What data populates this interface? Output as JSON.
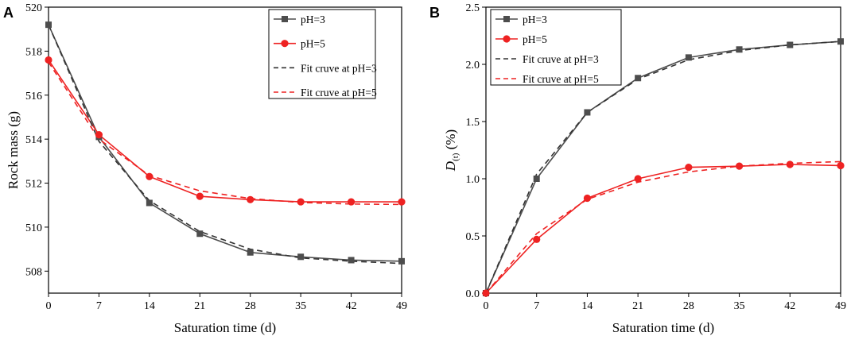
{
  "chart_data": [
    {
      "panel_label": "A",
      "type": "line",
      "xlabel": "Saturation time (d)",
      "ylabel": "Rock mass (g)",
      "xlim": [
        0,
        49
      ],
      "ylim": [
        507,
        520
      ],
      "xticks": [
        0,
        7,
        14,
        21,
        28,
        35,
        42,
        49
      ],
      "yticks": [
        508,
        510,
        512,
        514,
        516,
        518,
        520
      ],
      "x": [
        0,
        7,
        14,
        21,
        28,
        35,
        42,
        49
      ],
      "series": [
        {
          "name": "pH=3",
          "kind": "marker-line",
          "marker": "square",
          "color": "#4d4d4d",
          "values": [
            519.2,
            514.1,
            511.1,
            509.7,
            508.85,
            508.65,
            508.5,
            508.45
          ]
        },
        {
          "name": "pH=5",
          "kind": "marker-line",
          "marker": "circle",
          "color": "#ee2222",
          "values": [
            517.6,
            514.2,
            512.3,
            511.4,
            511.25,
            511.15,
            511.15,
            511.15
          ]
        },
        {
          "name": "Fit cruve at pH=3",
          "kind": "dashed",
          "color": "#333333",
          "values": [
            519.2,
            513.9,
            511.2,
            509.8,
            509.0,
            508.6,
            508.45,
            508.35
          ]
        },
        {
          "name": "Fit cruve at pH=5",
          "kind": "dashed",
          "color": "#ee2222",
          "values": [
            517.5,
            514.0,
            512.35,
            511.65,
            511.3,
            511.12,
            511.05,
            511.03
          ]
        }
      ]
    },
    {
      "panel_label": "B",
      "type": "line",
      "xlabel": "Saturation time (d)",
      "ylabel_main": "D",
      "ylabel_sub": "(t)",
      "ylabel_tail": " (%)",
      "xlim": [
        0,
        49
      ],
      "ylim": [
        0,
        2.5
      ],
      "xticks": [
        0,
        7,
        14,
        21,
        28,
        35,
        42,
        49
      ],
      "yticks": [
        "0.0",
        "0.5",
        "1.0",
        "1.5",
        "2.0",
        "2.5"
      ],
      "x": [
        0,
        7,
        14,
        21,
        28,
        35,
        42,
        49
      ],
      "series": [
        {
          "name": "pH=3",
          "kind": "marker-line",
          "marker": "square",
          "color": "#4d4d4d",
          "values": [
            0,
            1.0,
            1.58,
            1.88,
            2.06,
            2.13,
            2.17,
            2.2
          ]
        },
        {
          "name": "pH=5",
          "kind": "marker-line",
          "marker": "circle",
          "color": "#ee2222",
          "values": [
            0,
            0.47,
            0.83,
            1.0,
            1.1,
            1.11,
            1.125,
            1.115
          ]
        },
        {
          "name": "Fit cruve at pH=3",
          "kind": "dashed",
          "color": "#333333",
          "values": [
            0,
            1.04,
            1.58,
            1.87,
            2.04,
            2.12,
            2.17,
            2.2
          ]
        },
        {
          "name": "Fit cruve at pH=5",
          "kind": "dashed",
          "color": "#ee2222",
          "values": [
            0,
            0.52,
            0.82,
            0.97,
            1.06,
            1.11,
            1.135,
            1.15
          ]
        }
      ]
    }
  ]
}
